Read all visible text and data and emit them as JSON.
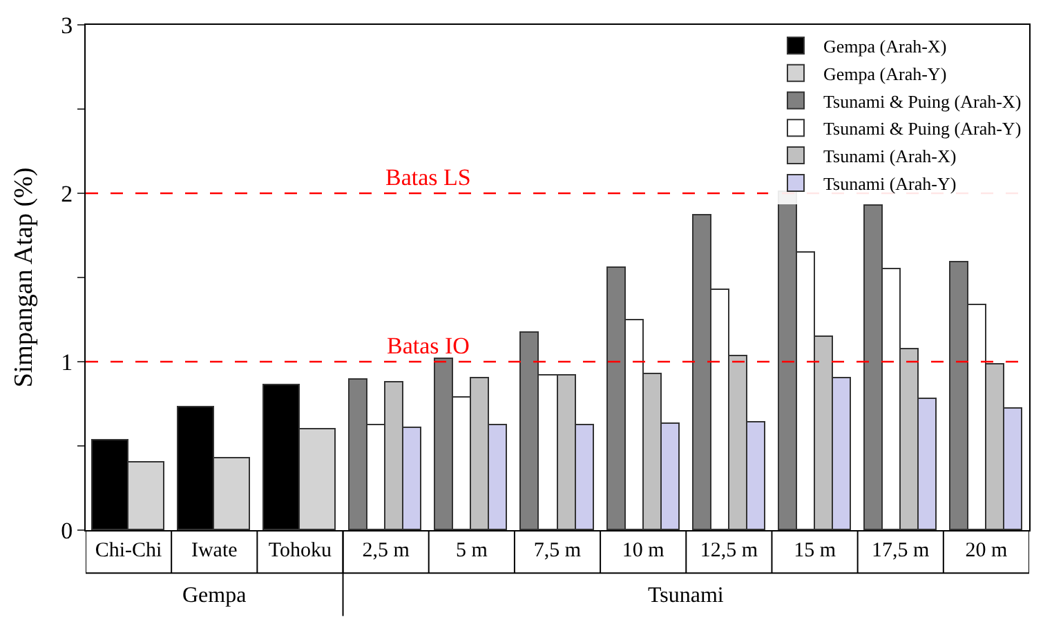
{
  "chart_data": {
    "type": "bar",
    "ylabel": "Simpangan Atap (%)",
    "categories": [
      "Chi-Chi",
      "Iwate",
      "Tohoku",
      "2,5 m",
      "5 m",
      "7,5 m",
      "10 m",
      "12,5 m",
      "15 m",
      "17,5 m",
      "20 m"
    ],
    "series": [
      {
        "name": "Gempa (Arah-X)",
        "color": "#000000",
        "values": [
          0.53,
          0.73,
          0.86,
          null,
          null,
          null,
          null,
          null,
          null,
          null,
          null
        ]
      },
      {
        "name": "Gempa (Arah-Y)",
        "color": "#d3d3d3",
        "values": [
          0.4,
          0.43,
          0.6,
          null,
          null,
          null,
          null,
          null,
          null,
          null,
          null
        ]
      },
      {
        "name": "Tsunami & Puing (Arah-X)",
        "color": "#808080",
        "values": [
          null,
          null,
          null,
          0.89,
          1.02,
          1.17,
          1.56,
          1.87,
          2.01,
          1.93,
          1.59
        ]
      },
      {
        "name": "Tsunami & Puing (Arah-Y)",
        "color": "#ffffff",
        "values": [
          null,
          null,
          null,
          0.62,
          0.79,
          0.92,
          1.25,
          1.43,
          1.65,
          1.55,
          1.34
        ]
      },
      {
        "name": "Tsunami (Arah-X)",
        "color": "#c0c0c0",
        "values": [
          null,
          null,
          null,
          0.88,
          0.9,
          0.92,
          0.93,
          1.03,
          1.15,
          1.07,
          0.98
        ]
      },
      {
        "name": "Tsunami (Arah-Y)",
        "color": "#ccccee",
        "values": [
          null,
          null,
          null,
          0.61,
          0.62,
          0.62,
          0.63,
          0.64,
          0.9,
          0.78,
          0.72
        ]
      }
    ],
    "ylim": [
      0,
      3
    ],
    "yticks": [
      0,
      {
        "value": 0.5,
        "label": null
      },
      1,
      {
        "value": 1.5,
        "label": null
      },
      2,
      {
        "value": 2.5,
        "label": null
      },
      3
    ],
    "ref_lines": [
      {
        "axis": "y",
        "value": 1,
        "label": "Batas IO",
        "color": "#ff0000",
        "line_style": "dashed"
      },
      {
        "axis": "y",
        "value": 2,
        "label": "Batas LS",
        "color": "#ff0000",
        "line_style": "dashed"
      }
    ],
    "annotations": [
      "Gempa",
      "Tsunami"
    ],
    "legend": "top right"
  }
}
